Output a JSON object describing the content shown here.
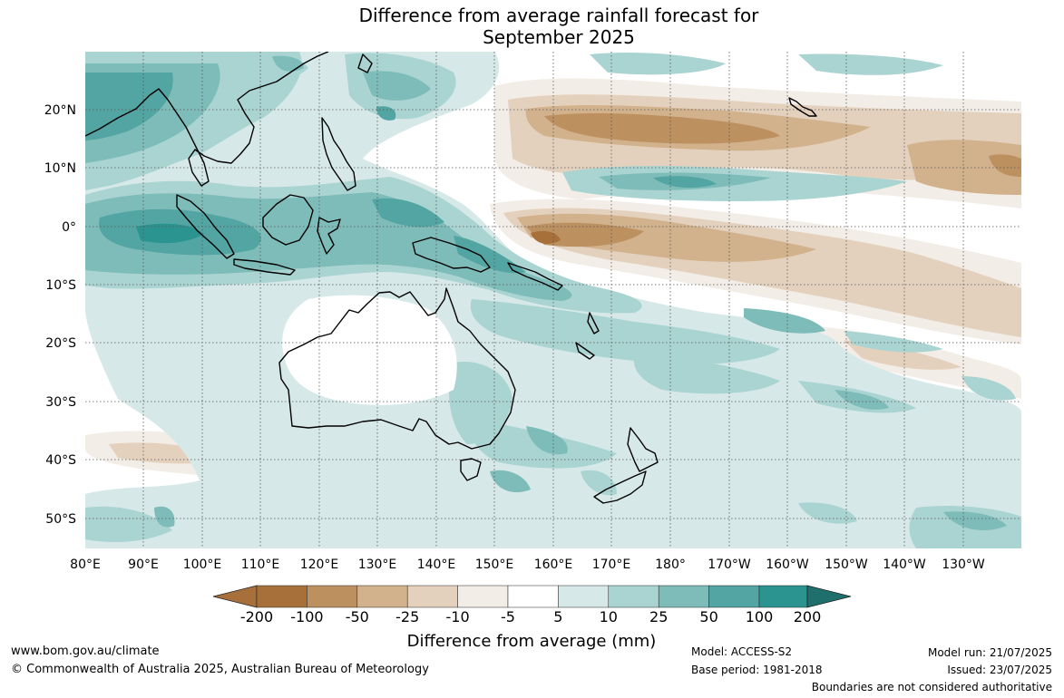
{
  "title": {
    "line1": "Difference from average rainfall forecast for",
    "line2": "September 2025"
  },
  "axes": {
    "lon_ticks": [
      "80°E",
      "90°E",
      "100°E",
      "110°E",
      "120°E",
      "130°E",
      "140°E",
      "150°E",
      "160°E",
      "170°E",
      "180°",
      "170°W",
      "160°W",
      "150°W",
      "140°W",
      "130°W"
    ],
    "lat_ticks": [
      "20°N",
      "10°N",
      "0°",
      "10°S",
      "20°S",
      "30°S",
      "40°S",
      "50°S"
    ]
  },
  "colorbar": {
    "title": "Difference from average (mm)",
    "labels": [
      "-200",
      "-100",
      "-50",
      "-25",
      "-10",
      "-5",
      "5",
      "10",
      "25",
      "50",
      "100",
      "200"
    ],
    "colors": [
      "#a7703a",
      "#bd9060",
      "#d2b18d",
      "#e4d1bd",
      "#f2ede6",
      "#ffffff",
      "#d6e9e8",
      "#aad4d2",
      "#7ebcb9",
      "#52a5a2",
      "#2b9390",
      "#1f6f6c"
    ]
  },
  "footer": {
    "website": "www.bom.gov.au/climate",
    "copyright": "© Commonwealth of Australia 2025, Australian Bureau of Meteorology",
    "model": "Model: ACCESS-S2",
    "base_period": "Base period: 1981-2018",
    "model_run": "Model run: 21/07/2025",
    "issued": "Issued: 23/07/2025",
    "disclaimer": "Boundaries are not considered authoritative"
  }
}
